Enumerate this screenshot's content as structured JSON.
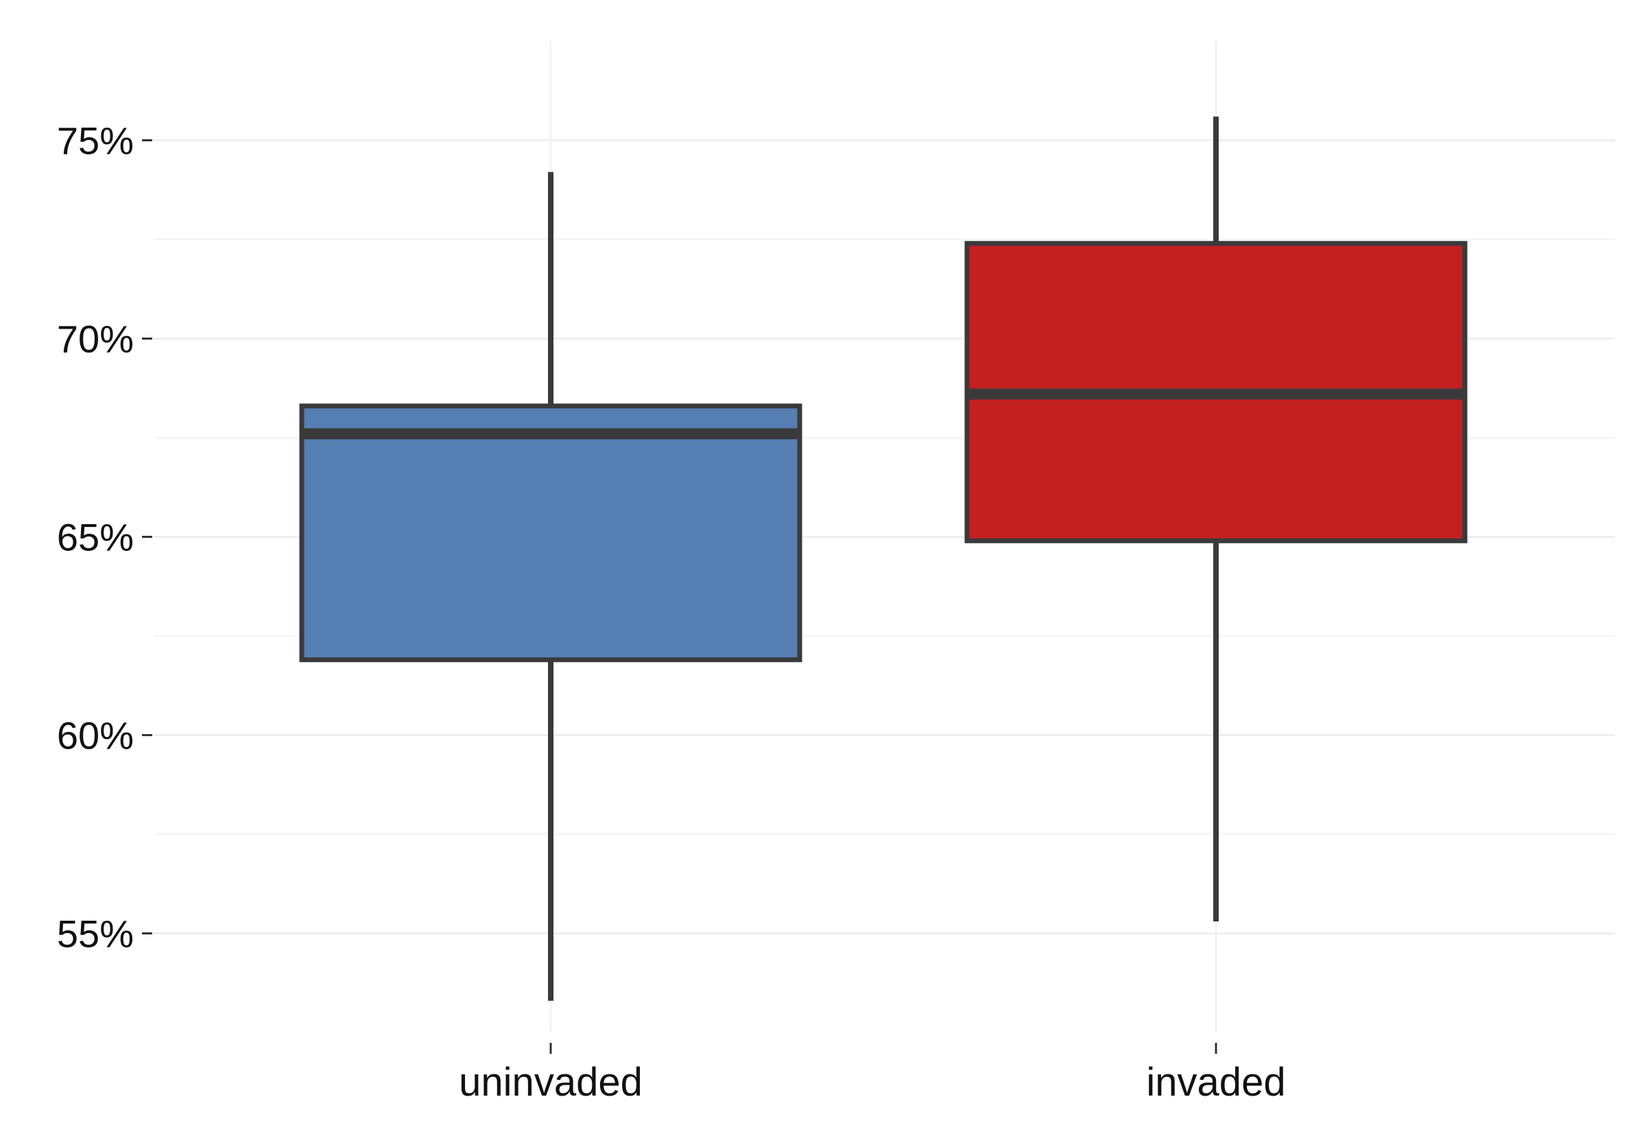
{
  "chart_data": {
    "type": "box",
    "title": "",
    "xlabel": "",
    "ylabel": "",
    "y_unit": "%",
    "ylim": [
      52.5,
      77.5
    ],
    "y_ticks": [
      55,
      60,
      65,
      70,
      75
    ],
    "y_tick_labels": [
      "55%",
      "60%",
      "65%",
      "70%",
      "75%"
    ],
    "grid": true,
    "categories": [
      "uninvaded",
      "invaded"
    ],
    "boxes": [
      {
        "category": "uninvaded",
        "min": 53.3,
        "q1": 61.9,
        "median": 67.6,
        "q3": 68.3,
        "max": 74.2,
        "color": "#557eb3"
      },
      {
        "category": "invaded",
        "min": 55.3,
        "q1": 64.9,
        "median": 68.6,
        "q3": 72.4,
        "max": 75.6,
        "color": "#c32022"
      }
    ],
    "outline_color": "#3a3a3a",
    "grid_color": "#e8e8e8"
  }
}
